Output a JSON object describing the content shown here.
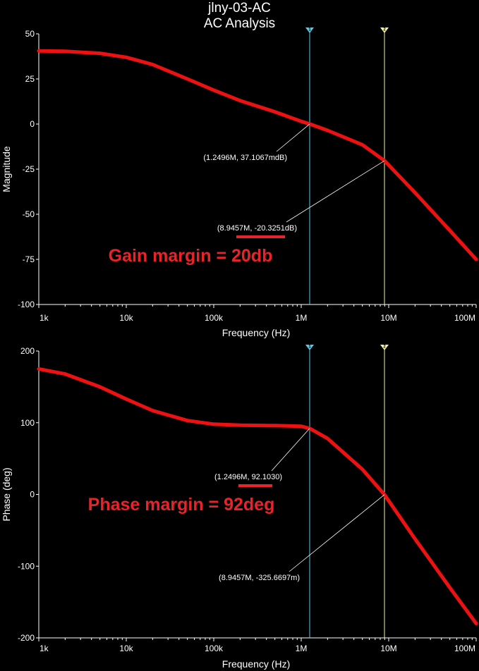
{
  "title": "jlny-03-AC",
  "subtitle": "AC Analysis",
  "colors": {
    "background": "#000000",
    "trace": "#ee1111",
    "annotation": "#e8232a",
    "cursor1": "#5fc8e6",
    "cursor2": "#f3f3a0",
    "axis": "#ffffff"
  },
  "cursors": [
    {
      "label": "1",
      "x": 1249600
    },
    {
      "label": "2",
      "x": 8945700
    }
  ],
  "chart_data": [
    {
      "type": "line",
      "title": "",
      "xlabel": "Frequency (Hz)",
      "ylabel": "Magnitude",
      "xscale": "log",
      "xlim": [
        1000,
        100000000
      ],
      "ylim": [
        -100,
        50
      ],
      "xticks": [
        1000,
        10000,
        100000,
        1000000,
        10000000,
        100000000
      ],
      "xtick_labels": [
        "1k",
        "10k",
        "100k",
        "1M",
        "10M",
        "100M"
      ],
      "yticks": [
        50,
        25,
        0,
        -25,
        -50,
        -75,
        -100
      ],
      "ytick_labels": [
        "50",
        "25",
        "0",
        "-25",
        "-50",
        "-75",
        "-100"
      ],
      "series": [
        {
          "x": [
            1000,
            2000,
            5000,
            10000,
            20000,
            50000,
            100000,
            200000,
            500000,
            1000000,
            1249600,
            2000000,
            5000000,
            8945700,
            20000000,
            50000000,
            100000000
          ],
          "y": [
            40.5,
            40.3,
            39.2,
            37.0,
            33.0,
            25.0,
            18.8,
            13.0,
            6.8,
            1.5,
            0.037,
            -3.5,
            -11.5,
            -20.3,
            -38.0,
            -59.0,
            -75.0
          ]
        }
      ],
      "callouts": [
        {
          "text": "(1.2496M, 37.1067mdB)",
          "x": 1249600,
          "y": 0.037
        },
        {
          "text": "(8.9457M, -20.3251dB)",
          "x": 8945700,
          "y": -20.3251,
          "underlined": "-20.3251"
        }
      ],
      "annotation": "Gain margin = 20db"
    },
    {
      "type": "line",
      "title": "",
      "xlabel": "Frequency (Hz)",
      "ylabel": "Phase (deg)",
      "xscale": "log",
      "xlim": [
        1000,
        100000000
      ],
      "ylim": [
        -200,
        200
      ],
      "xticks": [
        1000,
        10000,
        100000,
        1000000,
        10000000,
        100000000
      ],
      "xtick_labels": [
        "1k",
        "10k",
        "100k",
        "1M",
        "10M",
        "100M"
      ],
      "yticks": [
        200,
        100,
        0,
        -100,
        -200
      ],
      "ytick_labels": [
        "200",
        "100",
        "0",
        "-100",
        "-200"
      ],
      "series": [
        {
          "x": [
            1000,
            2000,
            5000,
            10000,
            20000,
            50000,
            100000,
            200000,
            500000,
            1000000,
            1249600,
            2000000,
            5000000,
            8945700,
            20000000,
            50000000,
            100000000
          ],
          "y": [
            175,
            168,
            150,
            133,
            117,
            103,
            98,
            96.5,
            96,
            95,
            92.1,
            78,
            35,
            -0.33,
            -62,
            -130,
            -180
          ]
        }
      ],
      "callouts": [
        {
          "text": "(1.2496M, 92.1030)",
          "x": 1249600,
          "y": 92.103,
          "underlined": "92.1030"
        },
        {
          "text": "(8.9457M, -325.6697m)",
          "x": 8945700,
          "y": -0.3256697
        }
      ],
      "annotation": "Phase margin = 92deg"
    }
  ]
}
